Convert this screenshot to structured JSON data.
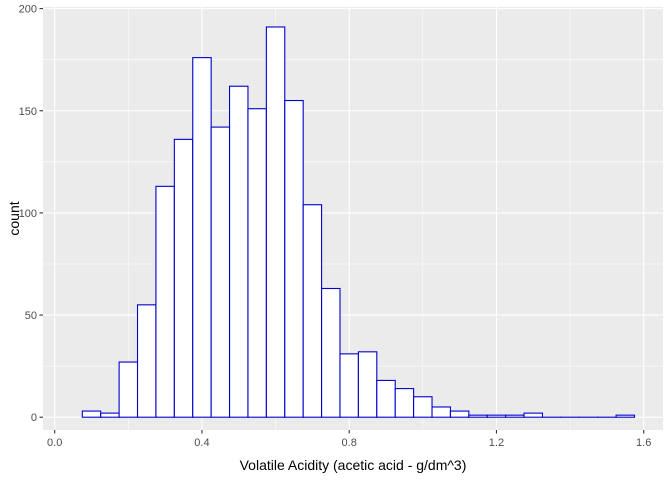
{
  "chart_data": {
    "type": "bar",
    "title": "",
    "xlabel": "Volatile Acidity (acetic acid - g/dm^3)",
    "ylabel": "count",
    "xlim": [
      0.0,
      1.65
    ],
    "ylim": [
      0,
      200
    ],
    "x_ticks": [
      0.0,
      0.4,
      0.8,
      1.2,
      1.6
    ],
    "x_tick_labels": [
      "0.0",
      "0.4",
      "0.8",
      "1.2",
      "1.6"
    ],
    "y_ticks": [
      0,
      50,
      100,
      150,
      200
    ],
    "y_tick_labels": [
      "0",
      "50",
      "100",
      "150",
      "200"
    ],
    "grid": true,
    "bin_width": 0.05,
    "bins": [
      {
        "x0": 0.075,
        "x1": 0.125,
        "count": 3
      },
      {
        "x0": 0.125,
        "x1": 0.175,
        "count": 2
      },
      {
        "x0": 0.175,
        "x1": 0.225,
        "count": 27
      },
      {
        "x0": 0.225,
        "x1": 0.275,
        "count": 55
      },
      {
        "x0": 0.275,
        "x1": 0.325,
        "count": 113
      },
      {
        "x0": 0.325,
        "x1": 0.375,
        "count": 136
      },
      {
        "x0": 0.375,
        "x1": 0.425,
        "count": 176
      },
      {
        "x0": 0.425,
        "x1": 0.475,
        "count": 142
      },
      {
        "x0": 0.475,
        "x1": 0.525,
        "count": 162
      },
      {
        "x0": 0.525,
        "x1": 0.575,
        "count": 151
      },
      {
        "x0": 0.575,
        "x1": 0.625,
        "count": 191
      },
      {
        "x0": 0.625,
        "x1": 0.675,
        "count": 155
      },
      {
        "x0": 0.675,
        "x1": 0.725,
        "count": 104
      },
      {
        "x0": 0.725,
        "x1": 0.775,
        "count": 63
      },
      {
        "x0": 0.775,
        "x1": 0.825,
        "count": 31
      },
      {
        "x0": 0.825,
        "x1": 0.875,
        "count": 32
      },
      {
        "x0": 0.875,
        "x1": 0.925,
        "count": 18
      },
      {
        "x0": 0.925,
        "x1": 0.975,
        "count": 14
      },
      {
        "x0": 0.975,
        "x1": 1.025,
        "count": 10
      },
      {
        "x0": 1.025,
        "x1": 1.075,
        "count": 5
      },
      {
        "x0": 1.075,
        "x1": 1.125,
        "count": 3
      },
      {
        "x0": 1.125,
        "x1": 1.175,
        "count": 1
      },
      {
        "x0": 1.175,
        "x1": 1.225,
        "count": 1
      },
      {
        "x0": 1.225,
        "x1": 1.275,
        "count": 1
      },
      {
        "x0": 1.275,
        "x1": 1.325,
        "count": 2
      },
      {
        "x0": 1.325,
        "x1": 1.375,
        "count": 0
      },
      {
        "x0": 1.375,
        "x1": 1.425,
        "count": 0
      },
      {
        "x0": 1.425,
        "x1": 1.475,
        "count": 0
      },
      {
        "x0": 1.475,
        "x1": 1.525,
        "count": 0
      },
      {
        "x0": 1.525,
        "x1": 1.575,
        "count": 1
      }
    ],
    "colors": {
      "panel_background": "#ebebeb",
      "grid_major": "#ffffff",
      "bar_fill": "#ffffff",
      "bar_outline": "#0000cd",
      "tick_text": "#4d4d4d",
      "axis_title_text": "#000000"
    }
  }
}
